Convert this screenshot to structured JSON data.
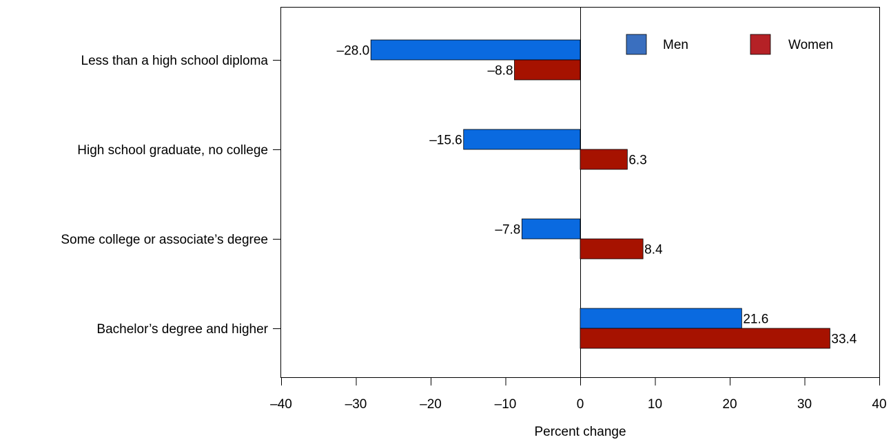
{
  "chart_data": {
    "type": "bar",
    "orientation": "horizontal",
    "categories": [
      "Less than a high school diploma",
      "High school graduate, no college",
      "Some college or associate’s degree",
      "Bachelor’s degree and higher"
    ],
    "series": [
      {
        "name": "Men",
        "color": "#0a6ae0",
        "values": [
          -28.0,
          -15.6,
          -7.8,
          21.6
        ],
        "labels": [
          "–28.0",
          "–15.6",
          "–7.8",
          "21.6"
        ]
      },
      {
        "name": "Women",
        "color": "#a61200",
        "values": [
          -8.8,
          6.3,
          8.4,
          33.4
        ],
        "labels": [
          "–8.8",
          "6.3",
          "8.4",
          "33.4"
        ]
      }
    ],
    "xlabel": "Percent change",
    "ylabel": "",
    "xlim": [
      -40,
      40
    ],
    "xticks": [
      -40,
      -30,
      -20,
      -10,
      0,
      10,
      20,
      30,
      40
    ],
    "xtick_labels": [
      "–40",
      "–30",
      "–20",
      "–10",
      "0",
      "10",
      "20",
      "30",
      "40"
    ],
    "grid": false,
    "legend": {
      "position": "top-right",
      "entries": [
        {
          "name": "Men",
          "swatch_color": "#3a6fbf"
        },
        {
          "name": "Women",
          "swatch_color": "#b52126"
        }
      ]
    }
  }
}
